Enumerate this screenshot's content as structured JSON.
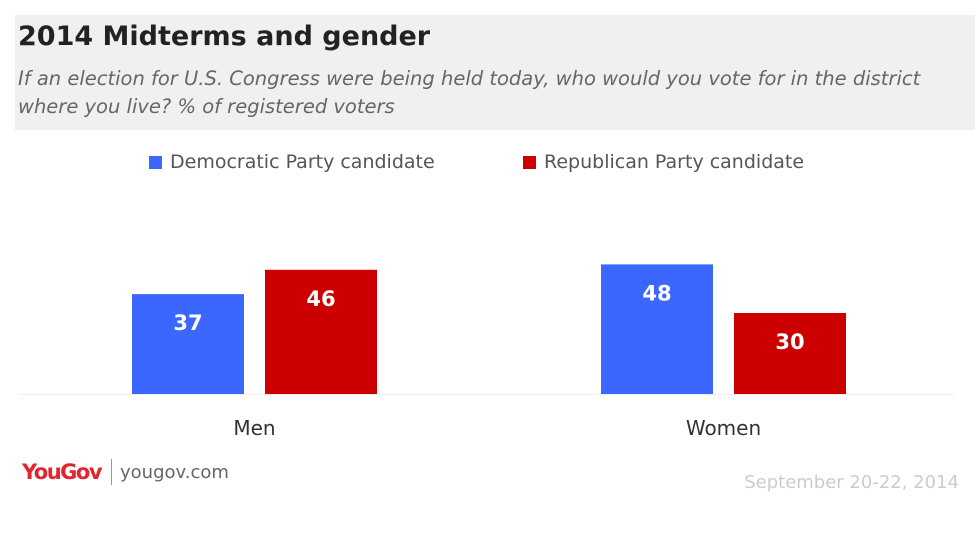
{
  "header": {
    "title": "2014 Midterms and gender",
    "subtitle": "If an election for U.S. Congress were being held today, who would you vote for in the district where you live? % of registered voters"
  },
  "legend": [
    {
      "label": "Democratic Party candidate",
      "color": "#3b67ff"
    },
    {
      "label": "Republican Party candidate",
      "color": "#cc0000"
    }
  ],
  "footer": {
    "brand": "YouGov",
    "url": "yougov.com",
    "date": "September 20-22, 2014"
  },
  "chart_data": {
    "type": "bar",
    "categories": [
      "Men",
      "Women"
    ],
    "series": [
      {
        "name": "Democratic Party candidate",
        "values": [
          37,
          48
        ],
        "color": "#3b67ff"
      },
      {
        "name": "Republican Party candidate",
        "values": [
          46,
          30
        ],
        "color": "#cc0000"
      }
    ],
    "ylim": [
      0,
      50
    ],
    "grid": false,
    "legend_position": "top"
  }
}
